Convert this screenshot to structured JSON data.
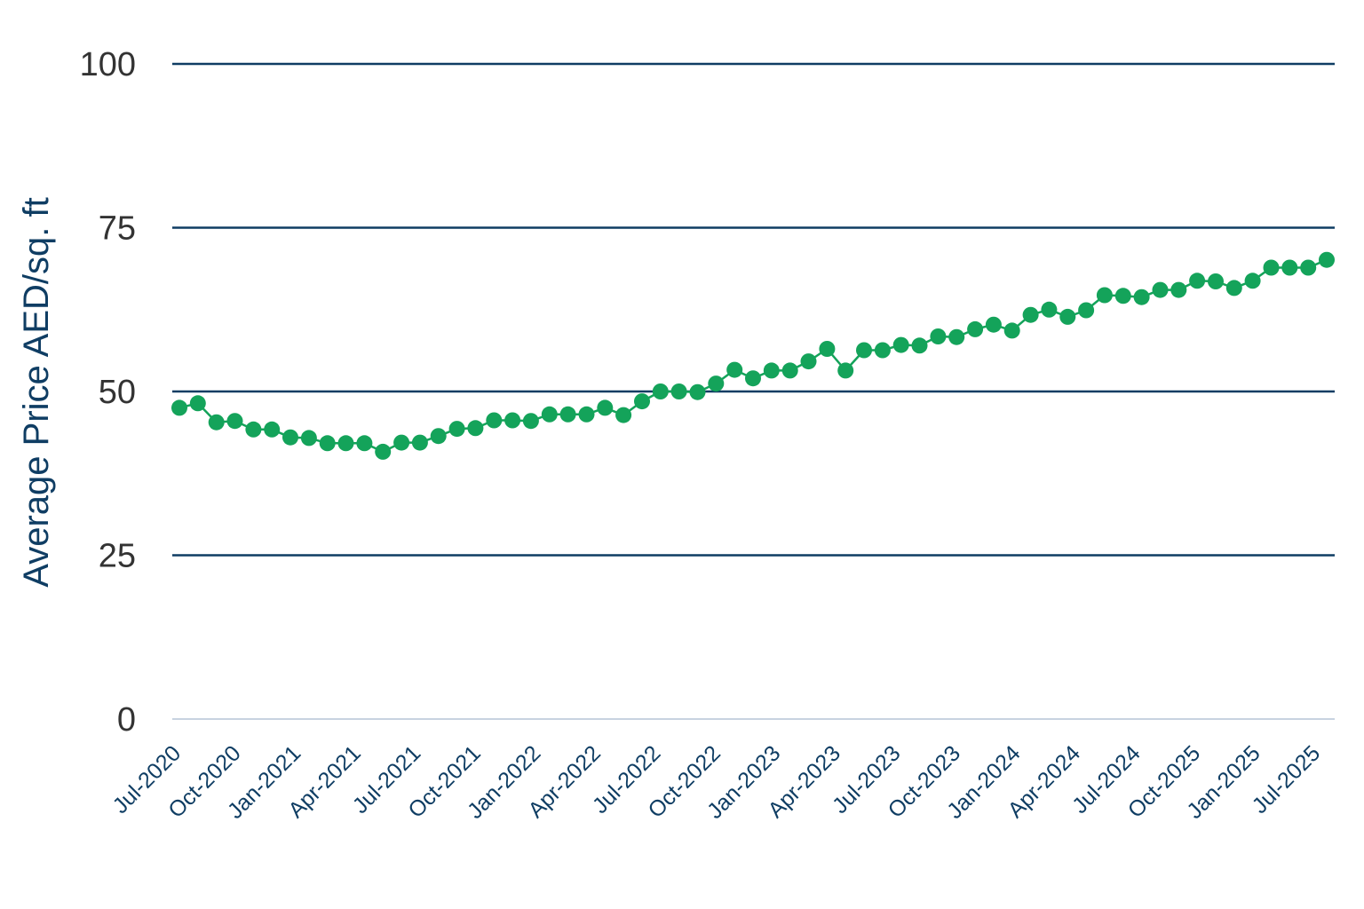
{
  "chart_data": {
    "type": "line",
    "ylabel": "Average Price AED/sq. ft",
    "xlabel": "",
    "title": "",
    "ylim": [
      0,
      100
    ],
    "yticks": [
      "0",
      "25",
      "50",
      "75",
      "100"
    ],
    "grid": "horizontal",
    "legend": "none",
    "colors": {
      "series": "#14a35a",
      "grid": "#0f3d63",
      "baseline": "#c8d3e0",
      "axis_text": "#0f3d63",
      "tick_text": "#333333"
    },
    "x_tick_labels": [
      "Jul-2020",
      "Oct-2020",
      "Jan-2021",
      "Apr-2021",
      "Jul-2021",
      "Oct-2021",
      "Jan-2022",
      "Apr-2022",
      "Jul-2022",
      "Oct-2022",
      "Jan-2023",
      "Apr-2023",
      "Jul-2023",
      "Oct-2023",
      "Jan-2024",
      "Apr-2024",
      "Jul-2024",
      "Oct-2025",
      "Jan-2025",
      "Jul-2025"
    ],
    "series": [
      {
        "values": [
          47.5,
          48.2,
          45.3,
          45.5,
          44.2,
          44.2,
          43.0,
          42.9,
          42.1,
          42.1,
          42.1,
          40.8,
          42.2,
          42.2,
          43.2,
          44.3,
          44.4,
          45.6,
          45.6,
          45.5,
          46.5,
          46.5,
          46.5,
          47.5,
          46.4,
          48.5,
          50.0,
          50.0,
          49.9,
          51.2,
          53.3,
          52.0,
          53.2,
          53.2,
          54.6,
          56.5,
          53.2,
          56.3,
          56.3,
          57.1,
          57.0,
          58.4,
          58.3,
          59.5,
          60.2,
          59.3,
          61.7,
          62.5,
          61.4,
          62.4,
          64.7,
          64.6,
          64.4,
          65.5,
          65.5,
          66.9,
          66.8,
          65.8,
          66.9,
          68.9,
          68.9,
          68.9,
          70.1
        ]
      }
    ]
  }
}
